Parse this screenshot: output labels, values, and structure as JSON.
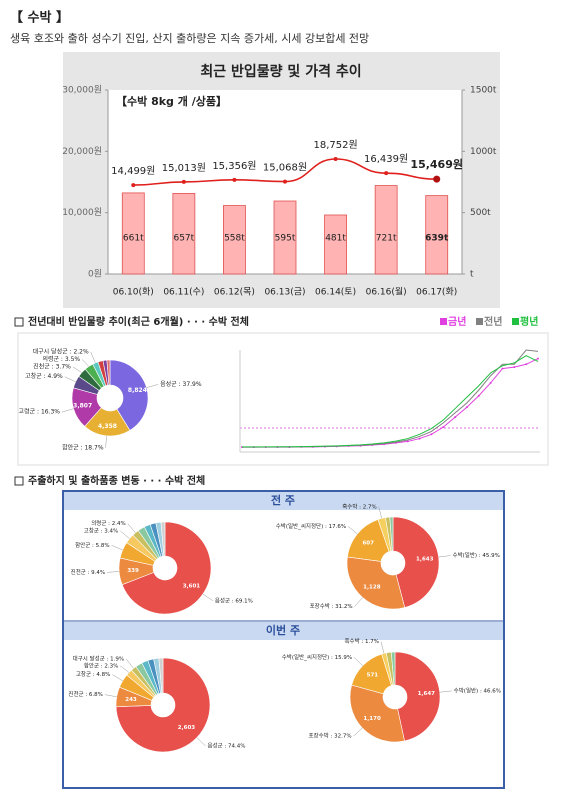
{
  "header": {
    "title": "【 수박 】",
    "subtitle": "생육 호조와 출하 성수기 진입, 산지 출하량은 지속 증가세, 시세 강보합세 전망"
  },
  "sections": [
    "전년대비 반입물량 추이(최근 6개월) · · · 수박 전체",
    "주출하지 및 출하품종 변동 · · · 수박 전체"
  ],
  "panels": [
    "전 주",
    "이번 주"
  ],
  "chart_data": [
    {
      "type": "combo",
      "title": "최근 반입물량 및 가격 추이",
      "annotation": "【수박 8kg 개 /상품】",
      "categories": [
        "06.10(화)",
        "06.11(수)",
        "06.12(목)",
        "06.13(금)",
        "06.14(토)",
        "06.16(월)",
        "06.17(화)"
      ],
      "series": [
        {
          "type": "bar",
          "axis": "y2",
          "color": "#ffb3b3",
          "values": [
            661,
            657,
            558,
            595,
            481,
            721,
            639
          ],
          "value_labels": [
            "661t",
            "657t",
            "558t",
            "595t",
            "481t",
            "721t",
            "639t"
          ]
        },
        {
          "type": "line",
          "color": "#e0201c",
          "values": [
            14499,
            15013,
            15356,
            15068,
            18752,
            16439,
            15469
          ],
          "value_labels": [
            "14,499원",
            "15,013원",
            "15,356원",
            "15,068원",
            "18,752원",
            "16,439원",
            "15,469원"
          ]
        }
      ],
      "ylim": [
        0,
        30000
      ],
      "yticks": [
        {
          "value": 0,
          "label": "0원"
        },
        {
          "value": 10000,
          "label": "10,000원"
        },
        {
          "value": 20000,
          "label": "20,000원"
        },
        {
          "value": 30000,
          "label": "30,000원"
        }
      ],
      "y2lim": [
        0,
        1500
      ],
      "y2ticks": [
        {
          "value": 0,
          "label": "t"
        },
        {
          "value": 500,
          "label": "500t"
        },
        {
          "value": 1000,
          "label": "1000t"
        },
        {
          "value": 1500,
          "label": "1500t"
        }
      ]
    },
    {
      "type": "pie",
      "values": [
        37.9,
        18.7,
        16.3,
        4.9,
        3.7,
        3.5,
        2.2,
        2.0,
        1.5,
        1.2
      ],
      "value_labels": [
        "음성군 : 37.9%",
        "함안군 : 18.7%",
        "고령군 : 16.3%",
        "고창군 : 4.9%",
        "진천군 : 3.7%",
        "의령군 : 3.5%",
        "대구시 달성군 : 2.2%",
        null,
        null,
        null
      ],
      "count_labels": [
        "8,824",
        "4,358",
        "3,807",
        null,
        null,
        null,
        null,
        null,
        null,
        null
      ],
      "colors": [
        "#7b68e0",
        "#e8b032",
        "#b03aa8",
        "#5a4a8a",
        "#2e6b3e",
        "#4caf50",
        "#5bc8c0",
        "#d04040",
        "#8040a0",
        "#e07070"
      ]
    },
    {
      "type": "line",
      "ylim": [
        0,
        700
      ],
      "series": [
        {
          "name": "금년",
          "color": "#e040e0",
          "values": [
            20,
            20,
            20,
            20,
            20,
            22,
            22,
            24,
            25,
            28,
            30,
            35,
            40,
            50,
            60,
            80,
            110,
            160,
            230,
            300,
            380,
            470,
            570,
            580,
            600,
            640
          ]
        },
        {
          "name": "전년",
          "color": "#808080",
          "values": [
            20,
            20,
            21,
            21,
            22,
            22,
            23,
            25,
            27,
            30,
            33,
            38,
            45,
            55,
            70,
            95,
            130,
            190,
            260,
            330,
            420,
            520,
            600,
            600,
            700,
            690
          ]
        },
        {
          "name": "평년",
          "color": "#20c040",
          "values": [
            22,
            22,
            22,
            23,
            23,
            24,
            25,
            27,
            29,
            32,
            36,
            42,
            50,
            62,
            80,
            110,
            150,
            210,
            290,
            370,
            450,
            540,
            590,
            610,
            660,
            620
          ]
        }
      ]
    },
    {
      "type": "pie",
      "values": [
        69.1,
        9.4,
        5.8,
        3.4,
        2.4,
        2.5,
        2.2,
        2.0,
        1.8,
        1.4
      ],
      "value_labels": [
        "음성군 : 69.1%",
        "진천군 : 9.4%",
        "함안군 : 5.8%",
        "고창군 : 3.4%",
        "의령군 : 2.4%",
        null,
        null,
        null,
        null,
        null
      ],
      "count_labels": [
        "3,601",
        "339",
        null,
        null,
        null,
        null,
        null,
        null,
        null,
        null
      ],
      "colors": [
        "#e8504c",
        "#ec8a40",
        "#f0a830",
        "#f5c860",
        "#c8c060",
        "#8ac8a0",
        "#5bb8c8",
        "#4a90c0",
        "#a0d0e0",
        "#d0d0d0"
      ]
    },
    {
      "type": "pie",
      "values": [
        45.9,
        31.2,
        17.6,
        2.7,
        1.5,
        1.1
      ],
      "value_labels": [
        "수박(일반) : 45.9%",
        "포장수박 : 31.2%",
        "수박(일반_씨지정단) : 17.6%",
        "흑수박 : 2.7%",
        null,
        null
      ],
      "count_labels": [
        "1,643",
        "1,128",
        "607",
        null,
        null,
        null
      ],
      "colors": [
        "#e8504c",
        "#ec8a40",
        "#f0a830",
        "#f5d060",
        "#c8c060",
        "#8ac8a0"
      ]
    },
    {
      "type": "pie",
      "values": [
        74.4,
        6.8,
        4.8,
        2.3,
        1.9,
        2.4,
        2.2,
        2.0,
        1.8,
        1.4
      ],
      "value_labels": [
        "음성군 : 74.4%",
        "진천군 : 6.8%",
        "고창군 : 4.8%",
        "함안군 : 2.3%",
        "대구시 달성군 : 1.9%",
        null,
        null,
        null,
        null,
        null
      ],
      "count_labels": [
        "2,603",
        "243",
        null,
        null,
        null,
        null,
        null,
        null,
        null,
        null
      ],
      "colors": [
        "#e8504c",
        "#ec8a40",
        "#f0a830",
        "#f5c860",
        "#c8c060",
        "#8ac8a0",
        "#5bb8c8",
        "#4a90c0",
        "#a0d0e0",
        "#d0d0d0"
      ]
    },
    {
      "type": "pie",
      "values": [
        46.6,
        32.7,
        15.9,
        1.7,
        1.8,
        1.3
      ],
      "value_labels": [
        "수박(일반) : 46.6%",
        "포장수박 : 32.7%",
        "수박(일반_씨지정단) : 15.9%",
        "흑수박 : 1.7%",
        null,
        null
      ],
      "count_labels": [
        "1,647",
        "1,170",
        "571",
        null,
        null,
        null
      ],
      "colors": [
        "#e8504c",
        "#ec8a40",
        "#f0a830",
        "#f5d060",
        "#c8c060",
        "#8ac8a0"
      ]
    }
  ]
}
